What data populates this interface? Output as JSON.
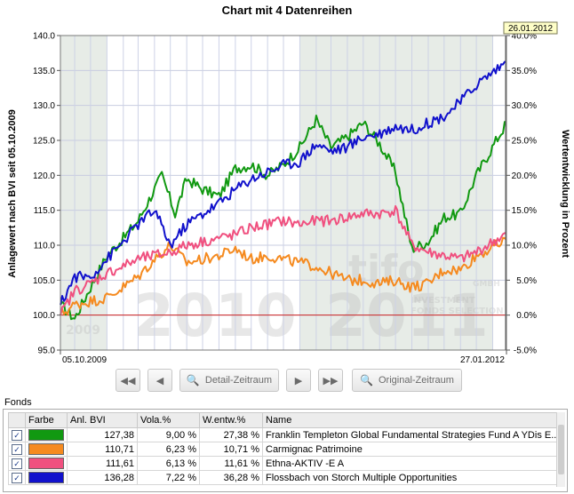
{
  "chart_data": {
    "type": "line",
    "title": "Chart mit 4 Datenreihen",
    "ylabel_left": "Anlagewert nach BVI seit 05.10.2009",
    "ylabel_right": "Wertentwicklung in Prozent",
    "ylim_left": [
      95.0,
      140.0
    ],
    "ylim_right": [
      -5.0,
      40.0
    ],
    "yticks_left": [
      "95.0",
      "100.0",
      "105.0",
      "110.0",
      "115.0",
      "120.0",
      "125.0",
      "130.0",
      "135.0",
      "140.0"
    ],
    "yticks_right": [
      "-5.0%",
      "0.0%",
      "5.0%",
      "10.0%",
      "15.0%",
      "20.0%",
      "25.0%",
      "30.0%",
      "35.0%",
      "40.0%"
    ],
    "xlabels": [
      "05.10.2009",
      "27.01.2012"
    ],
    "xlim": [
      "2009-10-05",
      "2012-01-27"
    ],
    "cursor_date": "26.01.2012",
    "year_labels": [
      "2009",
      "2010",
      "2011"
    ],
    "year_shading": [
      {
        "from": "2009-10-05",
        "to": "2010-01-01"
      },
      {
        "from": "2011-01-01",
        "to": "2012-01-01"
      }
    ],
    "watermark": {
      "brand": "tifo",
      "company": "GMBH",
      "line1": "INVESTMENT",
      "line2": "FONDS SELECTION"
    },
    "grid": true,
    "series": [
      {
        "name": "Franklin Templeton Global Fundamental Strategies Fund A YDis E...",
        "color": "#119911",
        "x": [
          "2009-10-05",
          "2009-11-01",
          "2009-12-01",
          "2010-01-01",
          "2010-02-01",
          "2010-03-01",
          "2010-04-15",
          "2010-05-10",
          "2010-06-01",
          "2010-07-01",
          "2010-08-01",
          "2010-09-01",
          "2010-10-01",
          "2010-11-01",
          "2010-12-01",
          "2011-01-01",
          "2011-02-01",
          "2011-03-01",
          "2011-04-01",
          "2011-05-01",
          "2011-06-01",
          "2011-07-01",
          "2011-08-01",
          "2011-09-01",
          "2011-10-01",
          "2011-11-01",
          "2011-12-01",
          "2012-01-27"
        ],
        "y": [
          101.5,
          99.5,
          104.0,
          108.5,
          111.0,
          113.5,
          120.0,
          114.5,
          119.5,
          118.0,
          117.0,
          121.0,
          121.5,
          120.0,
          121.5,
          124.0,
          128.0,
          124.0,
          125.5,
          127.5,
          124.5,
          120.5,
          109.5,
          110.5,
          114.0,
          114.5,
          120.0,
          127.5
        ]
      },
      {
        "name": "Carmignac Patrimoine",
        "color": "#f58a1f",
        "x": [
          "2009-10-05",
          "2009-11-01",
          "2009-12-01",
          "2010-01-01",
          "2010-02-01",
          "2010-03-01",
          "2010-04-01",
          "2010-05-01",
          "2010-06-01",
          "2010-07-01",
          "2010-08-01",
          "2010-09-01",
          "2010-10-01",
          "2010-11-01",
          "2010-12-01",
          "2011-01-01",
          "2011-02-01",
          "2011-03-01",
          "2011-04-01",
          "2011-05-01",
          "2011-06-01",
          "2011-07-01",
          "2011-08-01",
          "2011-09-01",
          "2011-10-01",
          "2011-11-01",
          "2011-12-01",
          "2012-01-27"
        ],
        "y": [
          100.0,
          101.5,
          102.0,
          102.5,
          104.0,
          105.5,
          108.0,
          110.0,
          107.5,
          108.0,
          108.5,
          109.5,
          108.0,
          108.5,
          108.0,
          107.5,
          107.0,
          106.0,
          105.0,
          105.0,
          104.5,
          105.0,
          104.0,
          104.5,
          106.5,
          106.5,
          108.5,
          110.7
        ]
      },
      {
        "name": "Ethna-AKTIV -E A",
        "color": "#f0507f",
        "x": [
          "2009-10-05",
          "2009-11-01",
          "2009-12-01",
          "2010-01-01",
          "2010-02-01",
          "2010-03-01",
          "2010-04-01",
          "2010-05-01",
          "2010-06-01",
          "2010-07-01",
          "2010-08-01",
          "2010-09-01",
          "2010-10-01",
          "2010-11-01",
          "2010-12-01",
          "2011-01-01",
          "2011-02-01",
          "2011-03-01",
          "2011-04-01",
          "2011-05-01",
          "2011-06-01",
          "2011-07-01",
          "2011-08-01",
          "2011-09-01",
          "2011-10-01",
          "2011-11-01",
          "2011-12-01",
          "2012-01-27"
        ],
        "y": [
          100.0,
          103.5,
          104.5,
          106.0,
          107.0,
          108.0,
          108.5,
          109.0,
          110.0,
          110.5,
          111.0,
          111.5,
          112.5,
          113.0,
          113.5,
          113.0,
          113.5,
          113.5,
          114.0,
          114.5,
          114.5,
          115.0,
          110.0,
          109.0,
          108.5,
          108.0,
          109.0,
          111.61
        ]
      },
      {
        "name": "Flossbach von Storch Multiple Opportunities",
        "color": "#1111cc",
        "x": [
          "2009-10-05",
          "2009-11-01",
          "2009-12-01",
          "2010-01-01",
          "2010-02-01",
          "2010-03-01",
          "2010-04-01",
          "2010-05-01",
          "2010-06-01",
          "2010-07-01",
          "2010-08-01",
          "2010-09-01",
          "2010-10-01",
          "2010-11-01",
          "2010-12-01",
          "2011-01-01",
          "2011-02-01",
          "2011-03-01",
          "2011-04-01",
          "2011-05-01",
          "2011-06-01",
          "2011-07-01",
          "2011-08-01",
          "2011-09-01",
          "2011-10-01",
          "2011-11-01",
          "2011-12-01",
          "2012-01-27"
        ],
        "y": [
          101.5,
          105.5,
          105.5,
          108.0,
          110.5,
          113.0,
          115.0,
          110.0,
          113.0,
          114.5,
          116.0,
          118.0,
          119.5,
          120.5,
          121.5,
          122.0,
          124.5,
          123.5,
          124.0,
          125.5,
          126.0,
          127.0,
          126.5,
          127.5,
          128.5,
          130.5,
          133.0,
          136.3
        ]
      }
    ]
  },
  "toolbar": {
    "first_icon": "first-icon",
    "prev_icon": "previous-icon",
    "detail_label": "Detail-Zeitraum",
    "next_icon": "next-icon",
    "last_icon": "last-icon",
    "original_label": "Original-Zeitraum"
  },
  "fonds": {
    "label": "Fonds",
    "columns": [
      "Farbe",
      "Anl. BVI",
      "Vola.%",
      "W.entw.%",
      "Name"
    ],
    "rows": [
      {
        "checked": true,
        "color": "#119911",
        "anl": "127,38",
        "vola": "9,00 %",
        "wentw": "27,38 %",
        "name": "Franklin Templeton Global Fundamental Strategies Fund A YDis E..."
      },
      {
        "checked": true,
        "color": "#f58a1f",
        "anl": "110,71",
        "vola": "6,23 %",
        "wentw": "10,71 %",
        "name": "Carmignac Patrimoine"
      },
      {
        "checked": true,
        "color": "#f0507f",
        "anl": "111,61",
        "vola": "6,13 %",
        "wentw": "11,61 %",
        "name": "Ethna-AKTIV -E A"
      },
      {
        "checked": true,
        "color": "#1111cc",
        "anl": "136,28",
        "vola": "7,22 %",
        "wentw": "36,28 %",
        "name": "Flossbach von Storch Multiple Opportunities"
      }
    ]
  }
}
